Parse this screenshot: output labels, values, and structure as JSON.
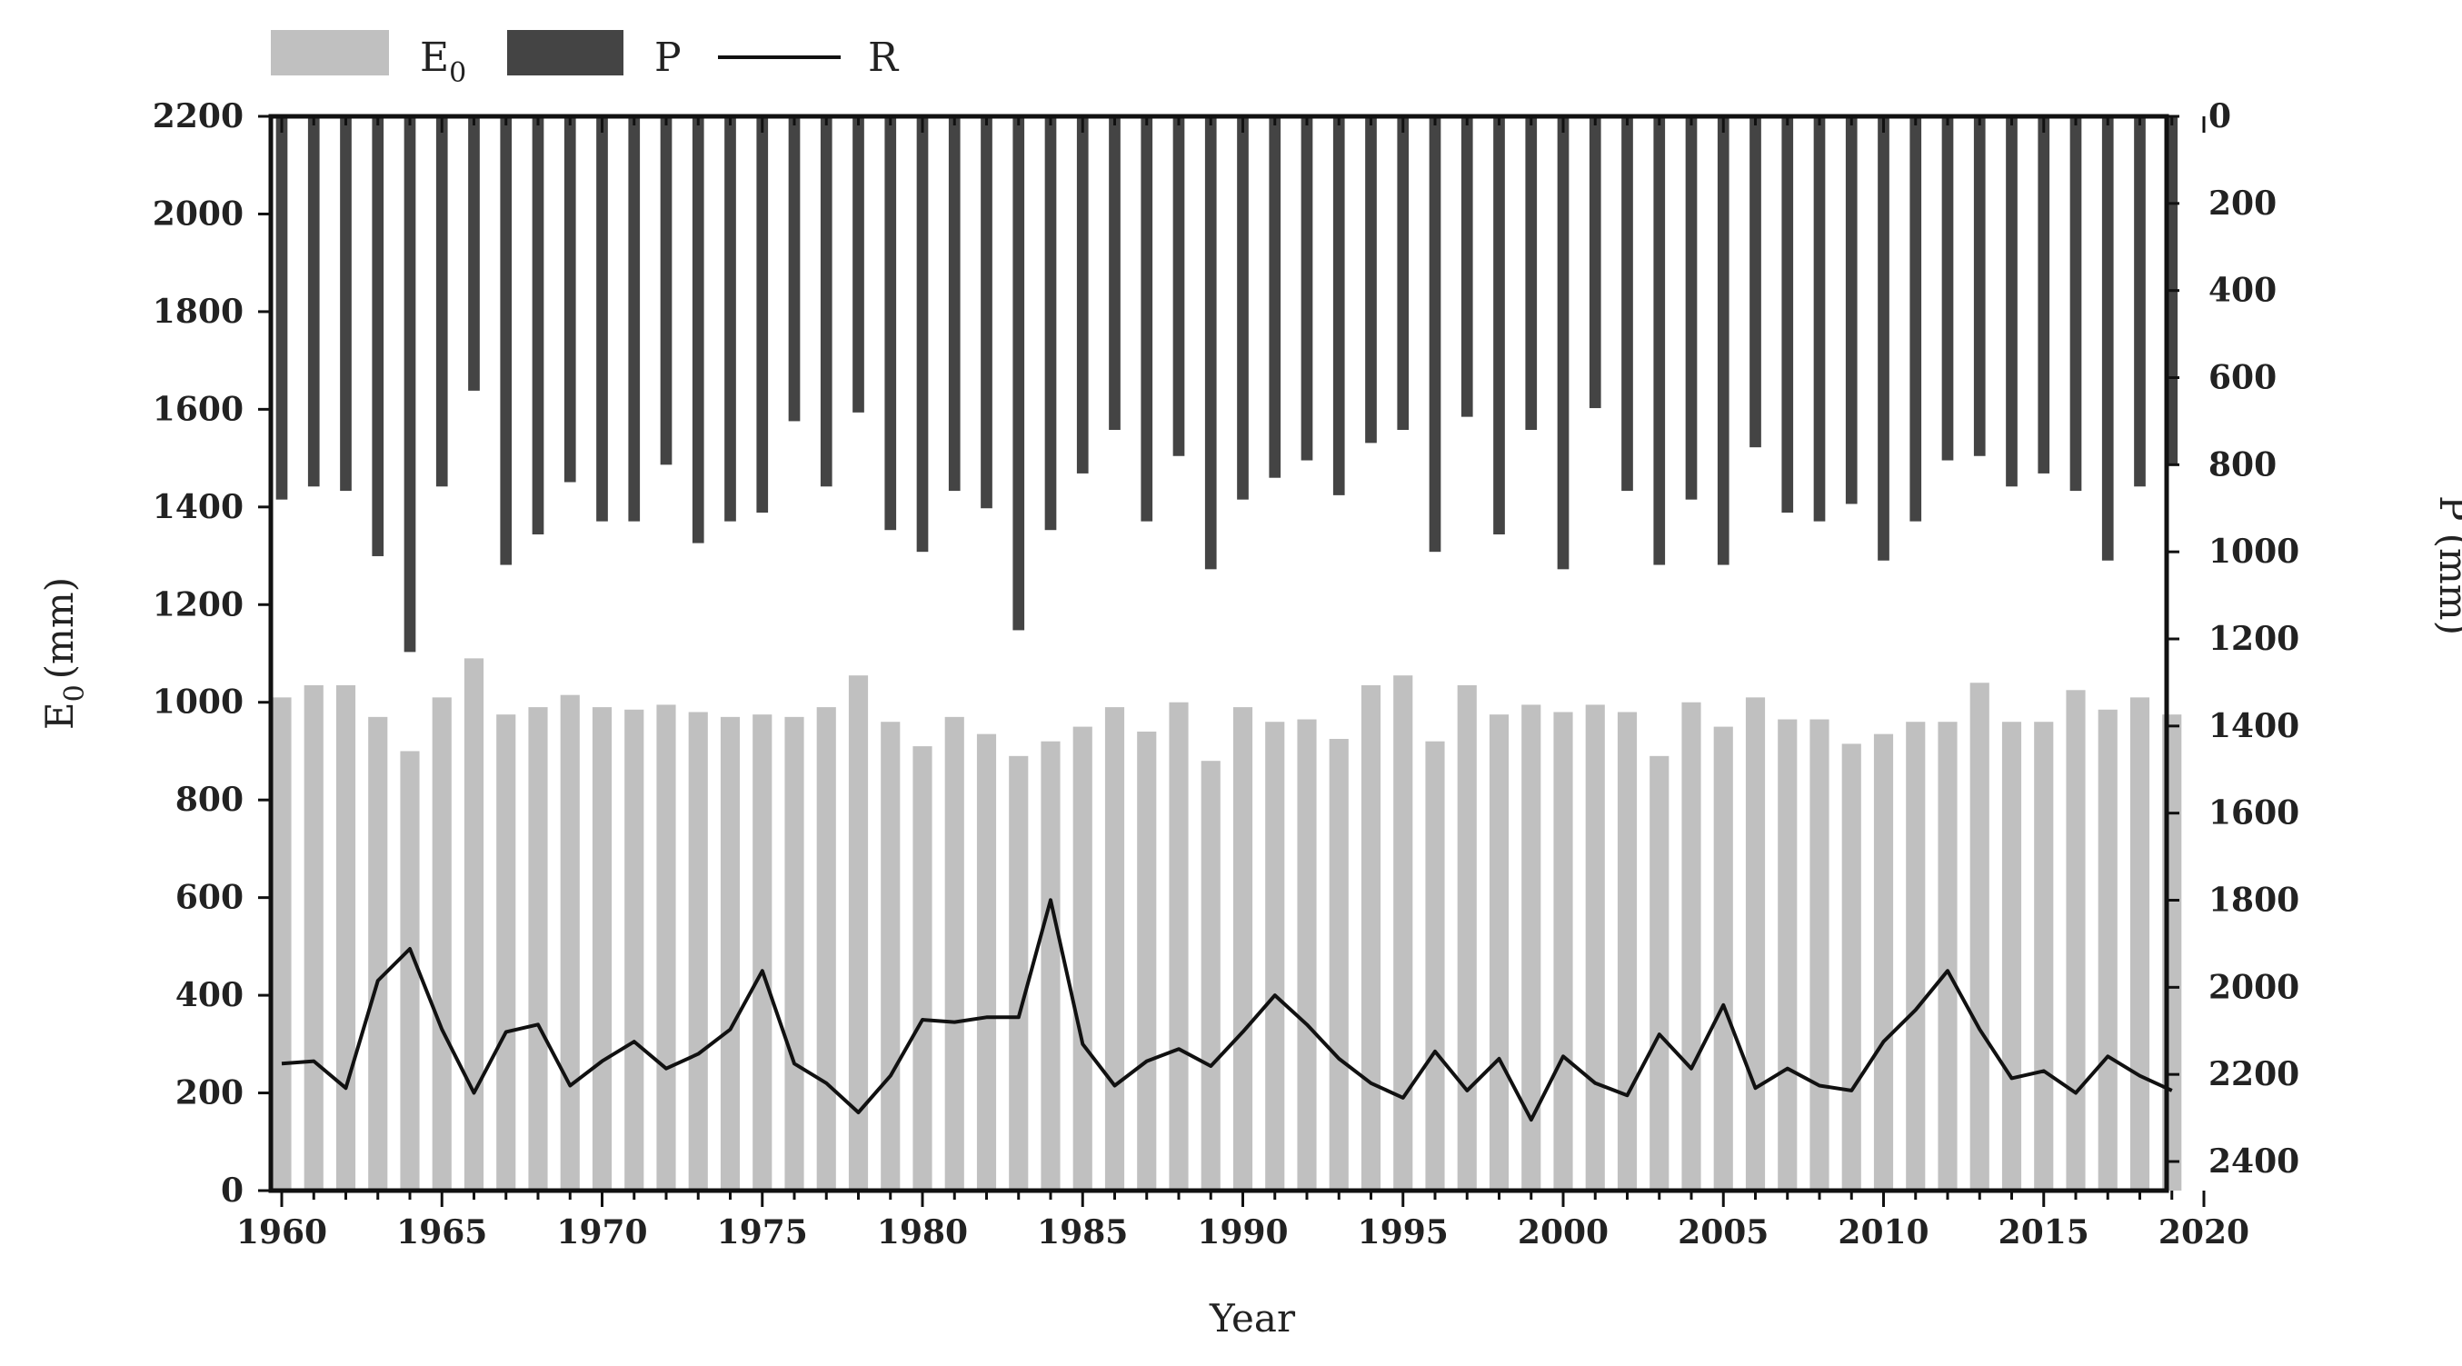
{
  "chart_data": {
    "type": "bar",
    "xlabel": "Year",
    "ylabel_left": "E",
    "ylabel_left_sub": "0",
    "ylabel_left_unit": "(mm)",
    "ylabel_right": "P (mm)",
    "x_ticks": [
      1960,
      1965,
      1970,
      1975,
      1980,
      1985,
      1990,
      1995,
      2000,
      2005,
      2010,
      2015,
      2020
    ],
    "y_left_ticks": [
      0,
      200,
      400,
      600,
      800,
      1000,
      1200,
      1400,
      1600,
      1800,
      2000,
      2200
    ],
    "y_right_ticks": [
      0,
      200,
      400,
      600,
      800,
      1000,
      1200,
      1400,
      1600,
      1800,
      2000,
      2200,
      2400
    ],
    "ylim_left": [
      0,
      2200
    ],
    "ylim_right": [
      0,
      2500
    ],
    "xlim": [
      1959.5,
      2020
    ],
    "y_right_inverted": true,
    "legend": {
      "placement": "top-left",
      "items": [
        {
          "label": "E",
          "sub": "0",
          "kind": "bar",
          "color": "#c0c0c0"
        },
        {
          "label": "P",
          "kind": "bar",
          "color": "#444444"
        },
        {
          "label": "R",
          "kind": "line",
          "color": "#111111"
        }
      ]
    },
    "colors": {
      "E0": "#c0c0c0",
      "P": "#444444",
      "R": "#111111"
    },
    "x": [
      1960,
      1961,
      1962,
      1963,
      1964,
      1965,
      1966,
      1967,
      1968,
      1969,
      1970,
      1971,
      1972,
      1973,
      1974,
      1975,
      1976,
      1977,
      1978,
      1979,
      1980,
      1981,
      1982,
      1983,
      1984,
      1985,
      1986,
      1987,
      1988,
      1989,
      1990,
      1991,
      1992,
      1993,
      1994,
      1995,
      1996,
      1997,
      1998,
      1999,
      2000,
      2001,
      2002,
      2003,
      2004,
      2005,
      2006,
      2007,
      2008,
      2009,
      2010,
      2011,
      2012,
      2013,
      2014,
      2015,
      2016,
      2017,
      2018,
      2019
    ],
    "series": [
      {
        "name": "E0",
        "axis": "left",
        "kind": "bar",
        "values": [
          1010,
          1035,
          1035,
          970,
          900,
          1010,
          1090,
          975,
          990,
          1015,
          990,
          985,
          995,
          980,
          970,
          975,
          970,
          990,
          1055,
          960,
          910,
          970,
          935,
          890,
          920,
          950,
          990,
          940,
          1000,
          880,
          990,
          960,
          965,
          925,
          1035,
          1055,
          920,
          1035,
          975,
          995,
          980,
          995,
          980,
          890,
          1000,
          950,
          1010,
          965,
          965,
          915,
          935,
          960,
          960,
          1040,
          960,
          960,
          1025,
          985,
          1010,
          975
        ]
      },
      {
        "name": "P",
        "axis": "right",
        "kind": "bar",
        "values": [
          880,
          850,
          860,
          1010,
          1230,
          850,
          630,
          1030,
          960,
          840,
          930,
          930,
          800,
          980,
          930,
          910,
          700,
          850,
          680,
          950,
          1000,
          860,
          900,
          1180,
          950,
          820,
          720,
          930,
          780,
          1040,
          880,
          830,
          790,
          870,
          750,
          720,
          1000,
          690,
          960,
          720,
          1040,
          670,
          860,
          1030,
          880,
          1030,
          760,
          910,
          930,
          890,
          1020,
          930,
          790,
          780,
          850,
          820,
          860,
          1020,
          850,
          800
        ]
      },
      {
        "name": "R",
        "axis": "left",
        "kind": "line",
        "values": [
          260,
          265,
          210,
          430,
          495,
          330,
          200,
          325,
          340,
          215,
          265,
          305,
          250,
          280,
          330,
          450,
          260,
          220,
          160,
          235,
          350,
          345,
          355,
          355,
          595,
          300,
          215,
          265,
          290,
          255,
          325,
          400,
          340,
          270,
          220,
          190,
          285,
          205,
          270,
          145,
          275,
          220,
          195,
          320,
          250,
          380,
          210,
          250,
          215,
          205,
          305,
          370,
          450,
          330,
          230,
          245,
          200,
          275,
          235,
          205
        ]
      }
    ]
  }
}
